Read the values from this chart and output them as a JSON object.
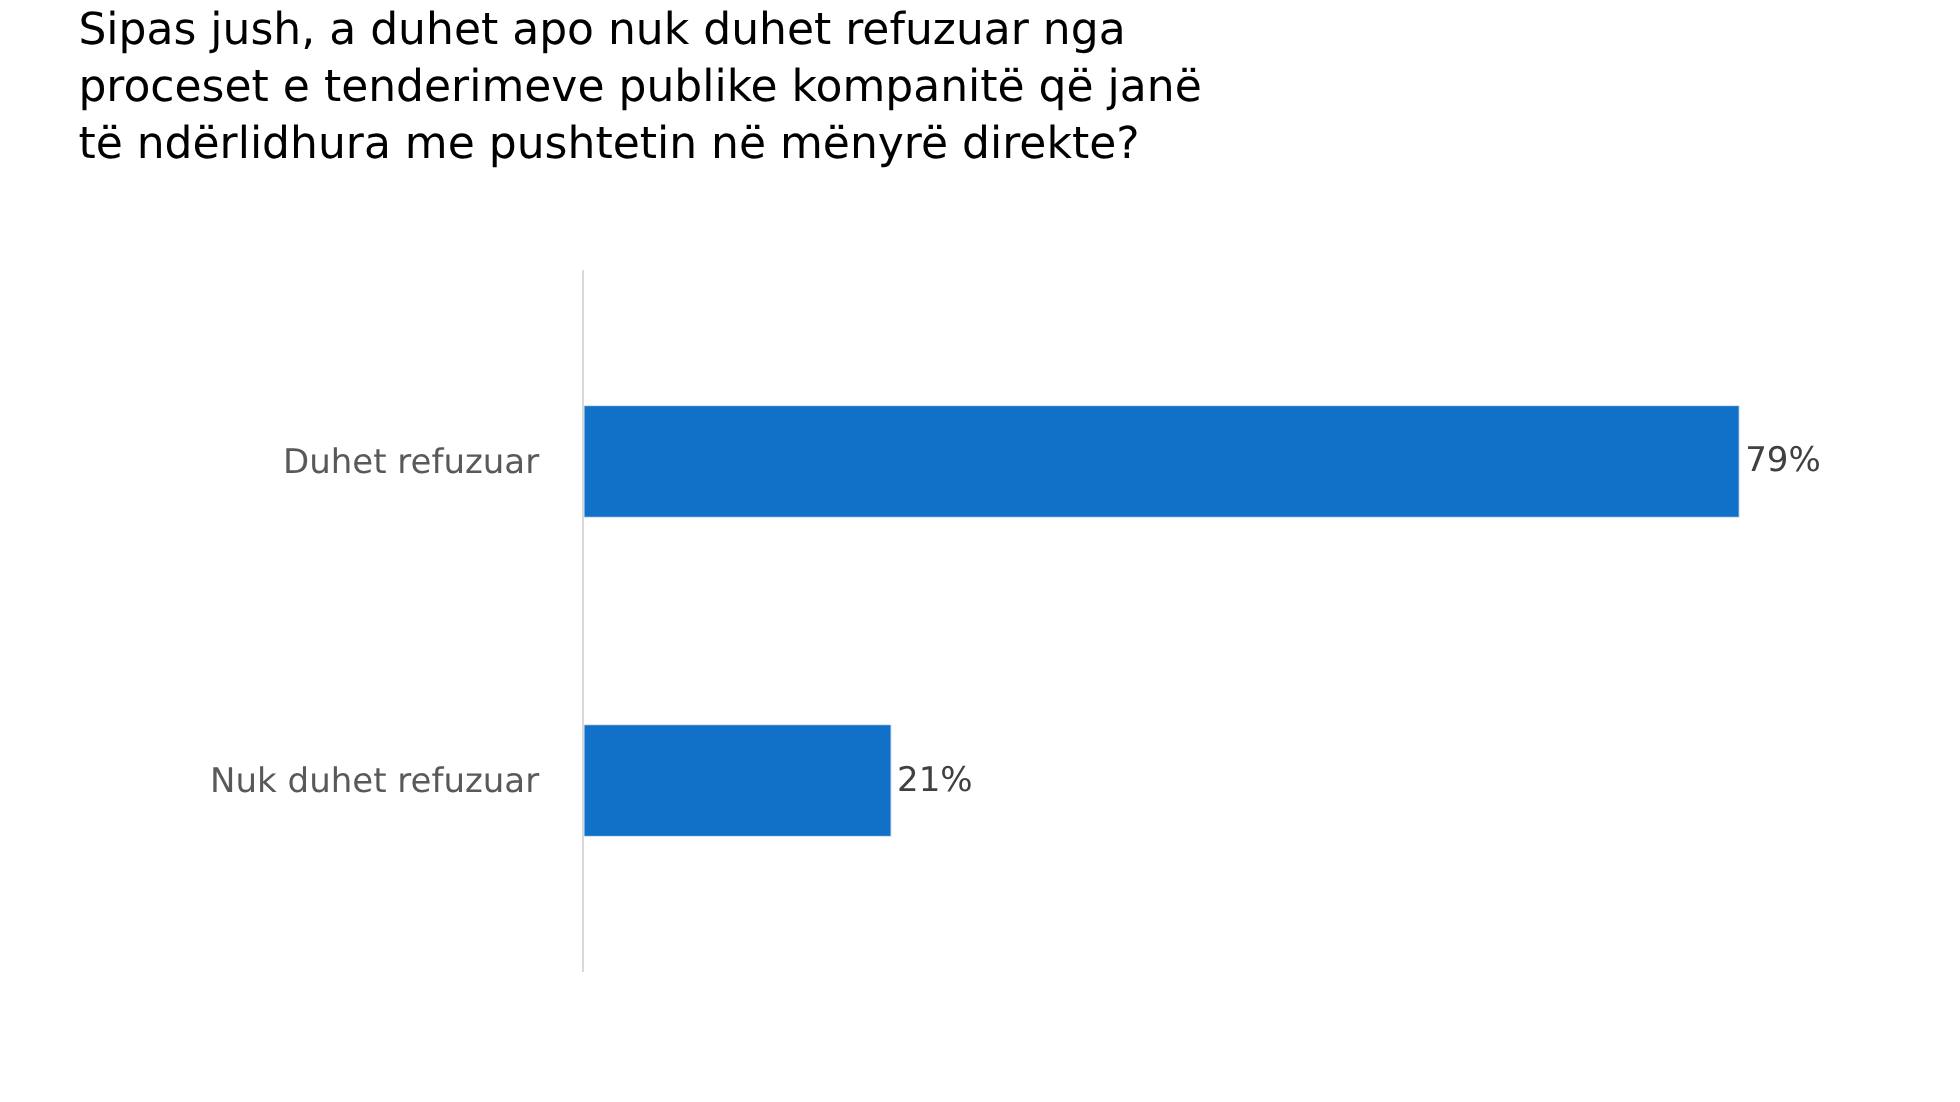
{
  "chart_data": {
    "type": "bar",
    "orientation": "horizontal",
    "title": "Sipas jush, a duhet apo nuk duhet refuzuar nga\nproceset e tenderimeve publike kompanitë që janë\ntë ndërlidhura me pushtetin në mënyrë direkte?",
    "categories": [
      "Duhet refuzuar",
      "Nuk duhet refuzuar"
    ],
    "values": [
      79,
      21
    ],
    "value_labels": [
      "79%",
      "21%"
    ],
    "color": "#1170c8",
    "legend": false
  }
}
